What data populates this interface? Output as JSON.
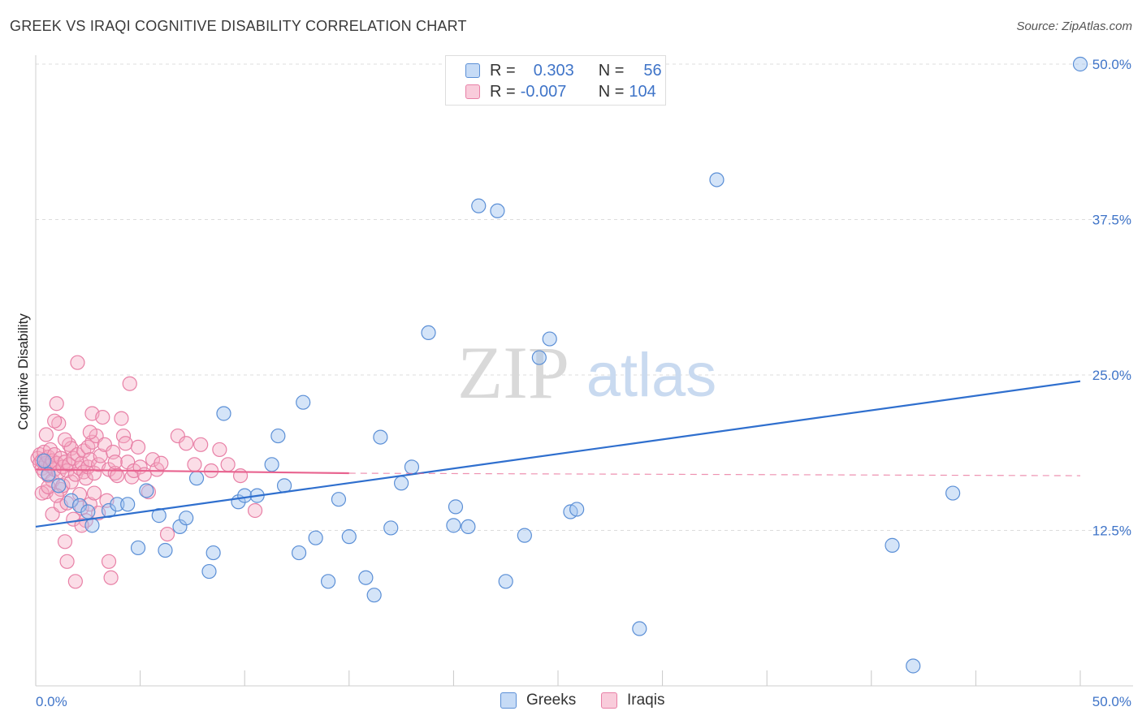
{
  "title": "GREEK VS IRAQI COGNITIVE DISABILITY CORRELATION CHART",
  "source": "Source: ZipAtlas.com",
  "watermark": {
    "zip": "ZIP",
    "atlas": "atlas"
  },
  "colors": {
    "blue_fill": "rgba(160,195,240,0.45)",
    "blue_stroke": "#5b8fd6",
    "blue_line": "#2f6fce",
    "pink_fill": "rgba(245,170,195,0.40)",
    "pink_stroke": "#e880a6",
    "pink_line": "#e8638f",
    "grid": "#dcdcdc",
    "axis_text": "#3f74c8"
  },
  "legend": {
    "rows": [
      {
        "r_label": "R =",
        "r_value": "0.303",
        "n_label": "N =",
        "n_value": "56"
      },
      {
        "r_label": "R =",
        "r_value": "-0.007",
        "n_label": "N =",
        "n_value": "104"
      }
    ]
  },
  "bottom_legend": {
    "greeks": "Greeks",
    "iraqis": "Iraqis"
  },
  "chart_data": {
    "type": "scatter",
    "title": "GREEK VS IRAQI COGNITIVE DISABILITY CORRELATION CHART",
    "xlabel": "",
    "ylabel": "Cognitive Disability",
    "xlim": [
      0,
      50
    ],
    "ylim": [
      0,
      50
    ],
    "x_tick_labels": {
      "left": "0.0%",
      "right": "50.0%"
    },
    "y_ticks": [
      12.5,
      25.0,
      37.5,
      50.0
    ],
    "y_tick_labels": [
      "12.5%",
      "25.0%",
      "37.5%",
      "50.0%"
    ],
    "grid": true,
    "legend_position": "top-center",
    "series": [
      {
        "name": "Greeks",
        "R": 0.303,
        "N": 56,
        "trend": {
          "x0": 0,
          "y0": 12.8,
          "x1": 50,
          "y1": 24.5
        },
        "points": [
          [
            0.4,
            18.1
          ],
          [
            0.6,
            17.0
          ],
          [
            1.1,
            16.1
          ],
          [
            1.7,
            14.9
          ],
          [
            2.1,
            14.5
          ],
          [
            2.5,
            14.0
          ],
          [
            2.7,
            12.9
          ],
          [
            3.5,
            14.1
          ],
          [
            3.9,
            14.6
          ],
          [
            4.4,
            14.6
          ],
          [
            4.9,
            11.1
          ],
          [
            5.3,
            15.7
          ],
          [
            5.9,
            13.7
          ],
          [
            6.2,
            10.9
          ],
          [
            6.9,
            12.8
          ],
          [
            7.2,
            13.5
          ],
          [
            7.7,
            16.7
          ],
          [
            8.3,
            9.2
          ],
          [
            8.5,
            10.7
          ],
          [
            9.0,
            21.9
          ],
          [
            9.7,
            14.8
          ],
          [
            10.0,
            15.3
          ],
          [
            10.6,
            15.3
          ],
          [
            11.3,
            17.8
          ],
          [
            11.6,
            20.1
          ],
          [
            11.9,
            16.1
          ],
          [
            12.6,
            10.7
          ],
          [
            12.8,
            22.8
          ],
          [
            13.4,
            11.9
          ],
          [
            14.0,
            8.4
          ],
          [
            14.5,
            15.0
          ],
          [
            15.0,
            12.0
          ],
          [
            15.8,
            8.7
          ],
          [
            16.2,
            7.3
          ],
          [
            16.5,
            20.0
          ],
          [
            17.0,
            12.7
          ],
          [
            17.5,
            16.3
          ],
          [
            18.0,
            17.6
          ],
          [
            18.8,
            28.4
          ],
          [
            20.0,
            12.9
          ],
          [
            20.1,
            14.4
          ],
          [
            20.7,
            12.8
          ],
          [
            21.2,
            38.6
          ],
          [
            22.1,
            38.2
          ],
          [
            22.5,
            8.4
          ],
          [
            23.4,
            12.1
          ],
          [
            24.1,
            26.4
          ],
          [
            24.6,
            27.9
          ],
          [
            25.6,
            14.0
          ],
          [
            25.9,
            14.2
          ],
          [
            28.9,
            4.6
          ],
          [
            32.6,
            40.7
          ],
          [
            41.0,
            11.3
          ],
          [
            42.0,
            1.6
          ],
          [
            43.9,
            15.5
          ],
          [
            50.0,
            50.0
          ]
        ]
      },
      {
        "name": "Iraqis",
        "R": -0.007,
        "N": 104,
        "trend": {
          "x0": 0,
          "y0": 17.4,
          "x1": 15,
          "y1": 17.1,
          "dashed_to_x": 50,
          "dashed_to_y": 16.9
        },
        "points": [
          [
            0.1,
            18.3
          ],
          [
            0.2,
            17.9
          ],
          [
            0.2,
            18.6
          ],
          [
            0.3,
            17.5
          ],
          [
            0.3,
            18.1
          ],
          [
            0.4,
            18.8
          ],
          [
            0.4,
            17.2
          ],
          [
            0.5,
            17.9
          ],
          [
            0.5,
            15.6
          ],
          [
            0.6,
            18.4
          ],
          [
            0.6,
            16.9
          ],
          [
            0.7,
            17.7
          ],
          [
            0.7,
            19.0
          ],
          [
            0.8,
            18.1
          ],
          [
            0.8,
            16.5
          ],
          [
            0.9,
            17.4
          ],
          [
            0.9,
            18.6
          ],
          [
            1.0,
            17.9
          ],
          [
            1.0,
            22.7
          ],
          [
            1.1,
            17.2
          ],
          [
            1.1,
            21.1
          ],
          [
            1.2,
            18.3
          ],
          [
            1.2,
            15.8
          ],
          [
            1.3,
            17.6
          ],
          [
            1.3,
            16.1
          ],
          [
            1.4,
            18.0
          ],
          [
            1.4,
            11.6
          ],
          [
            1.5,
            17.3
          ],
          [
            1.5,
            10.0
          ],
          [
            1.6,
            19.4
          ],
          [
            1.6,
            17.8
          ],
          [
            1.7,
            16.4
          ],
          [
            1.7,
            19.1
          ],
          [
            1.8,
            18.3
          ],
          [
            1.8,
            13.4
          ],
          [
            1.9,
            17.0
          ],
          [
            1.9,
            8.4
          ],
          [
            2.0,
            18.6
          ],
          [
            2.0,
            26.0
          ],
          [
            2.1,
            17.5
          ],
          [
            2.1,
            15.4
          ],
          [
            2.2,
            17.9
          ],
          [
            2.2,
            14.3
          ],
          [
            2.3,
            17.2
          ],
          [
            2.3,
            18.9
          ],
          [
            2.4,
            16.7
          ],
          [
            2.4,
            13.3
          ],
          [
            2.5,
            19.2
          ],
          [
            2.5,
            17.6
          ],
          [
            2.6,
            18.2
          ],
          [
            2.6,
            14.6
          ],
          [
            2.7,
            19.6
          ],
          [
            2.7,
            21.9
          ],
          [
            2.8,
            17.1
          ],
          [
            2.8,
            15.5
          ],
          [
            2.9,
            20.1
          ],
          [
            3.0,
            17.8
          ],
          [
            3.1,
            18.5
          ],
          [
            3.2,
            21.6
          ],
          [
            3.3,
            19.4
          ],
          [
            3.4,
            14.9
          ],
          [
            3.5,
            17.4
          ],
          [
            3.5,
            10.0
          ],
          [
            3.6,
            8.7
          ],
          [
            3.7,
            18.8
          ],
          [
            3.8,
            17.1
          ],
          [
            3.9,
            16.9
          ],
          [
            4.1,
            21.5
          ],
          [
            4.2,
            20.1
          ],
          [
            4.3,
            19.5
          ],
          [
            4.4,
            18.0
          ],
          [
            4.5,
            24.3
          ],
          [
            4.6,
            16.8
          ],
          [
            4.7,
            17.3
          ],
          [
            4.9,
            19.2
          ],
          [
            5.0,
            17.6
          ],
          [
            5.2,
            17.0
          ],
          [
            5.4,
            15.6
          ],
          [
            5.6,
            18.2
          ],
          [
            5.8,
            17.4
          ],
          [
            6.0,
            17.9
          ],
          [
            6.3,
            12.2
          ],
          [
            6.8,
            20.1
          ],
          [
            7.2,
            19.5
          ],
          [
            7.6,
            17.8
          ],
          [
            7.9,
            19.4
          ],
          [
            8.4,
            17.3
          ],
          [
            8.8,
            19.0
          ],
          [
            9.2,
            17.8
          ],
          [
            9.8,
            16.9
          ],
          [
            10.5,
            14.1
          ],
          [
            0.3,
            15.5
          ],
          [
            0.8,
            13.8
          ],
          [
            1.2,
            14.5
          ],
          [
            2.2,
            12.9
          ],
          [
            3.0,
            13.9
          ],
          [
            0.5,
            20.2
          ],
          [
            0.9,
            21.3
          ],
          [
            1.4,
            19.8
          ],
          [
            2.6,
            20.4
          ],
          [
            3.8,
            18.0
          ],
          [
            1.5,
            14.7
          ],
          [
            1.0,
            15.3
          ],
          [
            0.6,
            16.0
          ]
        ]
      }
    ]
  }
}
